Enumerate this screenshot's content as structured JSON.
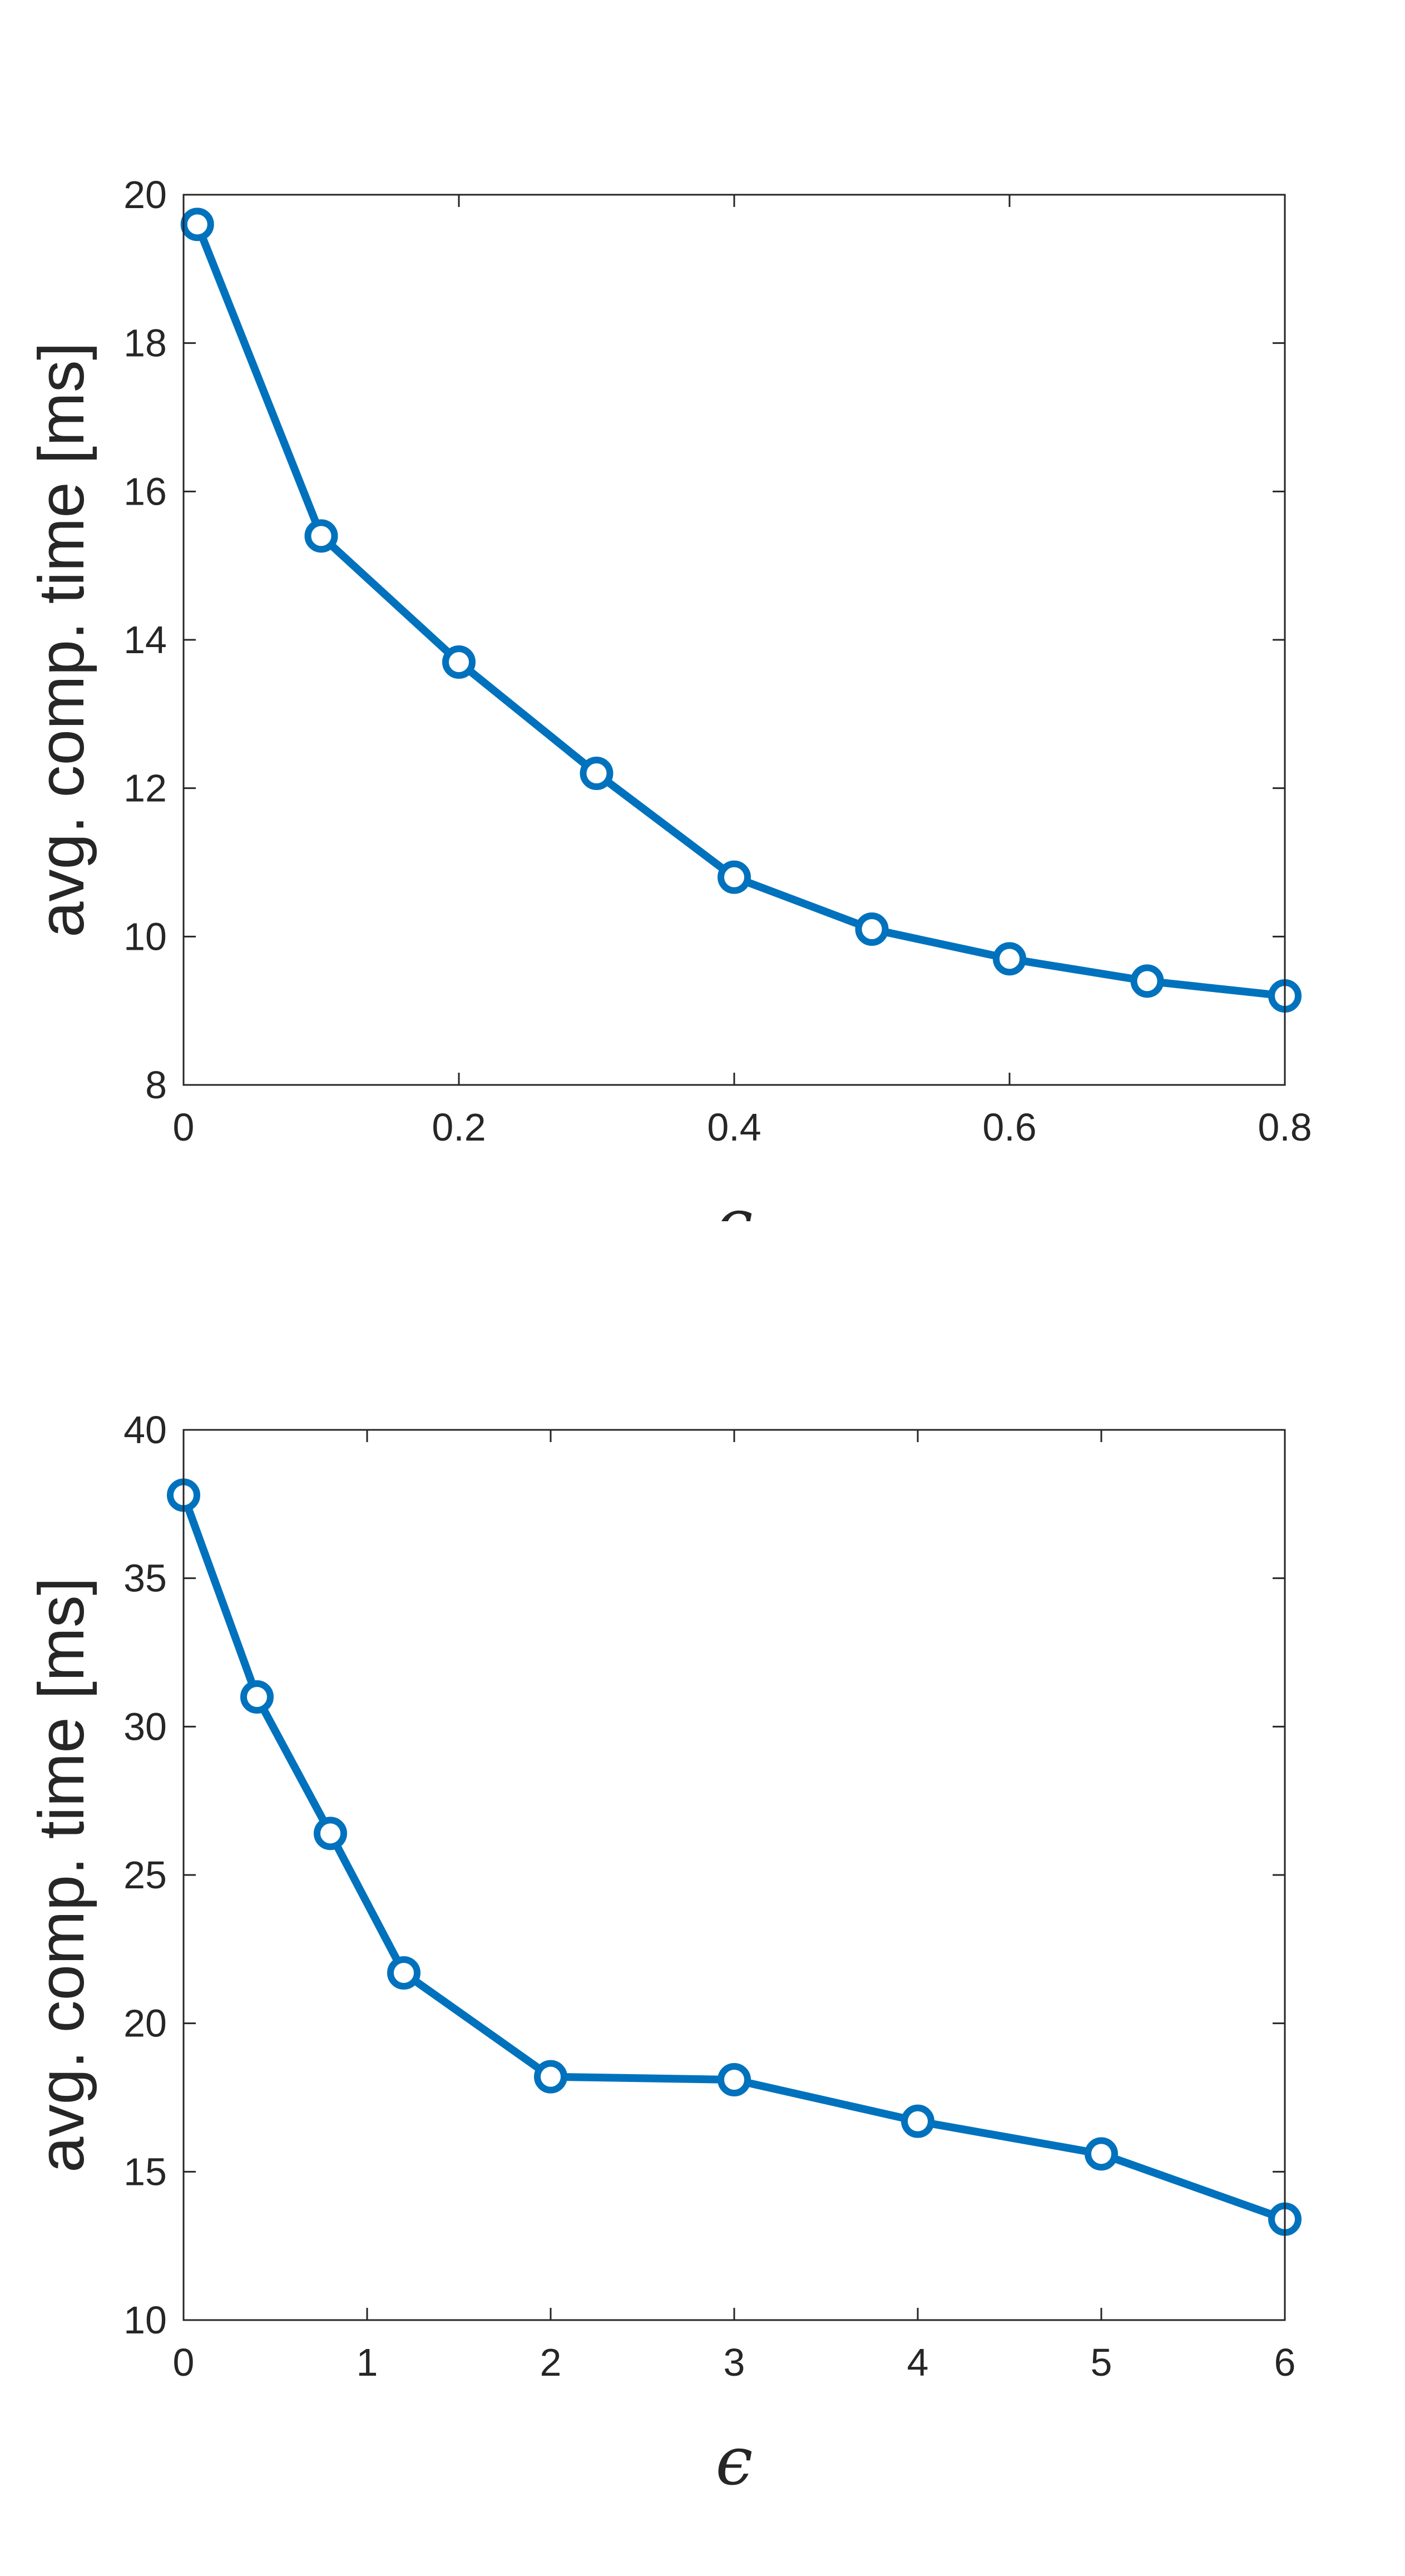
{
  "chart_data": [
    {
      "type": "line",
      "xlabel": "ϵ",
      "ylabel": "avg. comp. time [ms]",
      "xlim": [
        0,
        0.8
      ],
      "ylim": [
        8,
        20
      ],
      "xticks": [
        "0",
        "0.2",
        "0.4",
        "0.6",
        "0.8"
      ],
      "yticks": [
        "8",
        "10",
        "12",
        "14",
        "16",
        "18",
        "20"
      ],
      "grid": false,
      "color": "#0072BD",
      "series": [
        {
          "x": [
            0.01,
            0.1,
            0.2,
            0.3,
            0.4,
            0.5,
            0.6,
            0.7,
            0.8
          ],
          "y": [
            19.6,
            15.4,
            13.7,
            12.2,
            10.8,
            10.1,
            9.7,
            9.4,
            9.2
          ]
        }
      ]
    },
    {
      "type": "line",
      "xlabel": "ϵ",
      "ylabel": "avg. comp. time [ms]",
      "xlim": [
        0,
        6
      ],
      "ylim": [
        10,
        40
      ],
      "xticks": [
        "0",
        "1",
        "2",
        "3",
        "4",
        "5",
        "6"
      ],
      "yticks": [
        "10",
        "15",
        "20",
        "25",
        "30",
        "35",
        "40"
      ],
      "grid": false,
      "color": "#0072BD",
      "series": [
        {
          "x": [
            0,
            0.4,
            0.8,
            1.2,
            2,
            3,
            4,
            5,
            6
          ],
          "y": [
            37.8,
            31.0,
            26.4,
            21.7,
            18.2,
            18.1,
            16.7,
            15.6,
            13.4
          ]
        }
      ]
    }
  ]
}
